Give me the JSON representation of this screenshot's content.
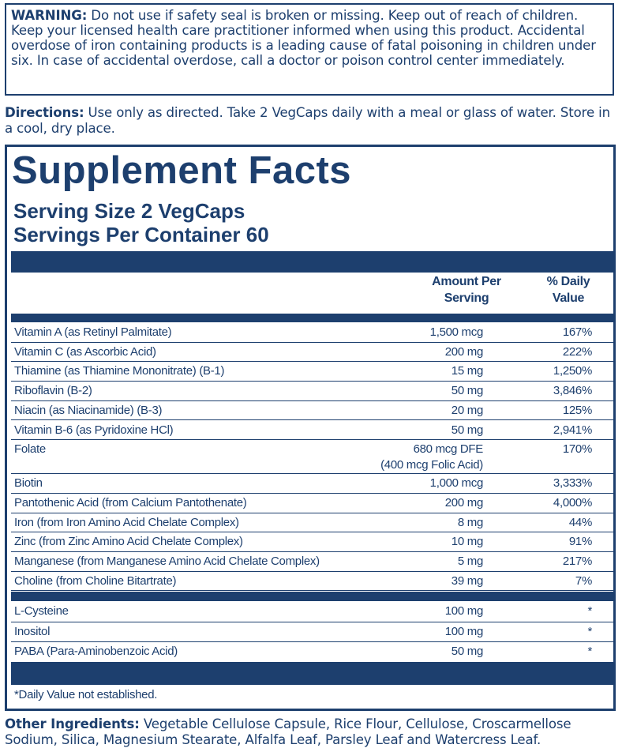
{
  "warning": {
    "label": "WARNING:",
    "text": " Do not use if safety seal is broken or missing. Keep out of reach of children. Keep your licensed health care practitioner informed when using this product. Accidental overdose of iron containing products is a leading cause of fatal poisoning in children under six. In case of accidental overdose, call a doctor or poison control center immediately."
  },
  "directions": {
    "label": "Directions:",
    "text": " Use only as directed. Take 2 VegCaps daily with a meal or glass of water. Store in a cool, dry place."
  },
  "facts": {
    "title": "Supplement Facts",
    "serving_size": "Serving Size 2 VegCaps",
    "servings_per_container": "Servings Per Container 60",
    "col_amount_l1": "Amount Per",
    "col_amount_l2": "Serving",
    "col_dv_l1": "% Daily",
    "col_dv_l2": "Value",
    "nutrients": [
      {
        "name": "Vitamin A (as Retinyl Palmitate)",
        "amount": "1,500 mcg",
        "dv": "167%"
      },
      {
        "name": "Vitamin C (as Ascorbic Acid)",
        "amount": "200 mg",
        "dv": "222%"
      },
      {
        "name": "Thiamine (as Thiamine Mononitrate) (B-1)",
        "amount": "15 mg",
        "dv": "1,250%"
      },
      {
        "name": "Riboflavin (B-2)",
        "amount": "50 mg",
        "dv": "3,846%"
      },
      {
        "name": "Niacin (as Niacinamide) (B-3)",
        "amount": "20 mg",
        "dv": "125%"
      },
      {
        "name": "Vitamin B-6 (as Pyridoxine HCl)",
        "amount": "50 mg",
        "dv": "2,941%"
      },
      {
        "name": "Folate",
        "amount": "680 mcg DFE",
        "amount_line2": "(400 mcg Folic Acid)",
        "dv": "170%"
      },
      {
        "name": "Biotin",
        "amount": "1,000 mcg",
        "dv": "3,333%"
      },
      {
        "name": "Pantothenic Acid (from Calcium Pantothenate)",
        "amount": "200 mg",
        "dv": "4,000%"
      },
      {
        "name": "Iron (from Iron Amino Acid Chelate Complex)",
        "amount": "8 mg",
        "dv": "44%"
      },
      {
        "name": "Zinc (from Zinc Amino Acid Chelate Complex)",
        "amount": "10 mg",
        "dv": "91%"
      },
      {
        "name": "Manganese (from Manganese Amino Acid Chelate Complex)",
        "amount": "5 mg",
        "dv": "217%"
      },
      {
        "name": "Choline (from Choline Bitartrate)",
        "amount": "39 mg",
        "dv": "7%"
      }
    ],
    "others": [
      {
        "name": "L-Cysteine",
        "amount": "100 mg",
        "dv": "*"
      },
      {
        "name": "Inositol",
        "amount": "100 mg",
        "dv": "*"
      },
      {
        "name": "PABA (Para-Aminobenzoic Acid)",
        "amount": "50 mg",
        "dv": "*"
      }
    ],
    "footnote": "*Daily Value not established."
  },
  "other_ingredients": {
    "label": "Other Ingredients:",
    "text": " Vegetable Cellulose Capsule, Rice Flour, Cellulose, Croscarmellose Sodium, Silica, Magnesium Stearate, Alfalfa Leaf, Parsley Leaf and Watercress Leaf."
  },
  "colors": {
    "label_blue": "#1d3f6e",
    "background": "#ffffff"
  }
}
